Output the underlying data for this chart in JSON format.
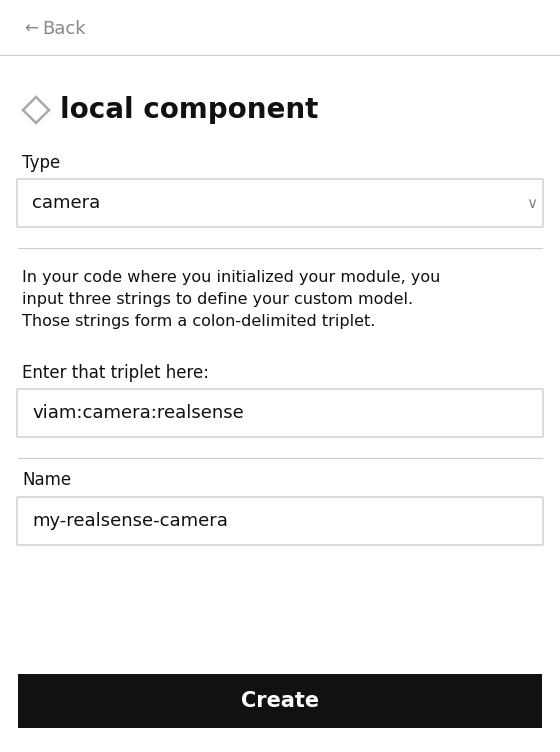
{
  "bg_color": "#ffffff",
  "back_text": "Back",
  "back_arrow": "←",
  "back_color": "#888888",
  "title": "local component",
  "title_fontsize": 20,
  "title_color": "#111111",
  "diamond_color": "#aaaaaa",
  "type_label": "Type",
  "type_value": "camera",
  "dropdown_arrow": "∨",
  "body_text": "In your code where you initialized your module, you\ninput three strings to define your custom model.\nThose strings form a colon-delimited triplet.",
  "triplet_label": "Enter that triplet here:",
  "triplet_value": "viam:camera:realsense",
  "name_label": "Name",
  "name_value": "my-realsense-camera",
  "button_text": "Create",
  "button_bg": "#111111",
  "button_text_color": "#ffffff",
  "divider_color": "#cccccc",
  "field_border": "#cccccc",
  "label_color": "#111111",
  "field_text_color": "#111111",
  "fig_w": 5.6,
  "fig_h": 7.52,
  "dpi": 100
}
